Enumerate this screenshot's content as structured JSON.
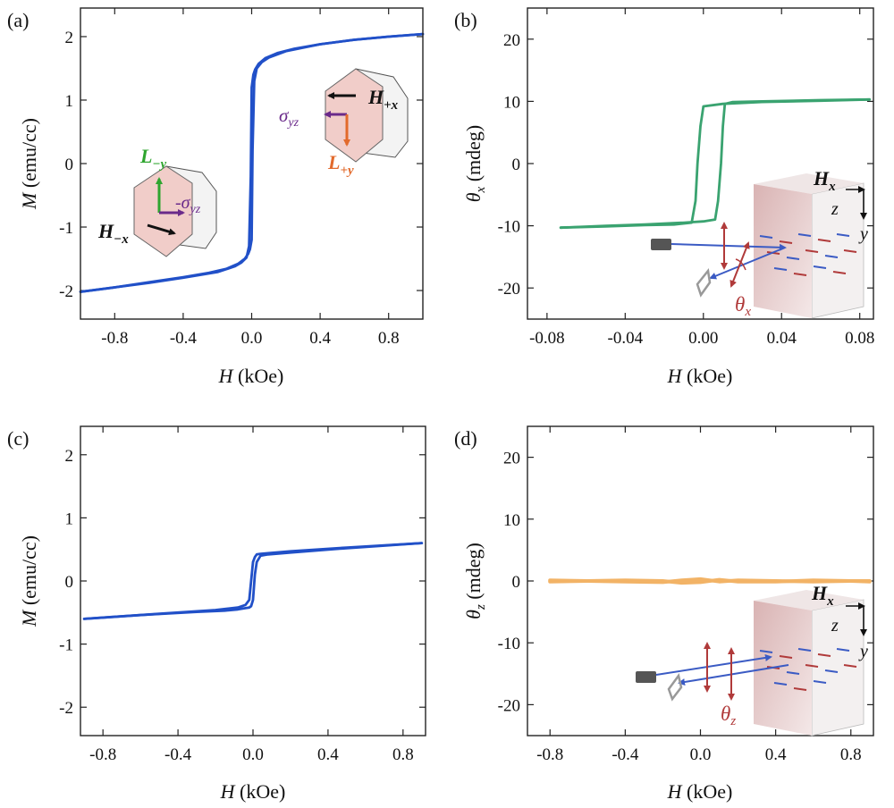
{
  "chart_data": [
    {
      "panel": "(a)",
      "type": "line",
      "xlabel": {
        "var": "H",
        "unit": " (kOe)"
      },
      "ylabel": {
        "var": "M",
        "unit": " (emu/cc)"
      },
      "xlim": [
        -1.0,
        1.0
      ],
      "ylim": [
        -2.45,
        2.45
      ],
      "xticks": [
        -0.8,
        -0.4,
        0.0,
        0.4,
        0.8
      ],
      "yticks": [
        -2,
        -1,
        0,
        1,
        2
      ],
      "xtick_labels": [
        "-0.8",
        "-0.4",
        "0.0",
        "0.4",
        "0.8"
      ],
      "ytick_labels": [
        "-2",
        "-1",
        "0",
        "1",
        "2"
      ],
      "color": "#2150c8",
      "series": [
        {
          "x": [
            -1.0,
            -0.8,
            -0.6,
            -0.4,
            -0.25,
            -0.15,
            -0.08,
            -0.04,
            -0.02,
            -0.01,
            0.0,
            0.005,
            0.015,
            0.03,
            0.06,
            0.1,
            0.2,
            0.4,
            0.6,
            0.8,
            1.0
          ],
          "y": [
            -2.02,
            -1.95,
            -1.87,
            -1.79,
            -1.72,
            -1.66,
            -1.58,
            -1.5,
            -1.42,
            -1.35,
            -1.2,
            0.2,
            1.3,
            1.5,
            1.6,
            1.67,
            1.77,
            1.88,
            1.95,
            2.0,
            2.04
          ]
        },
        {
          "x": [
            1.0,
            0.8,
            0.6,
            0.4,
            0.25,
            0.15,
            0.08,
            0.04,
            0.02,
            0.01,
            0.0,
            -0.005,
            -0.015,
            -0.03,
            -0.06,
            -0.1,
            -0.2,
            -0.4,
            -0.6,
            -0.8,
            -1.0
          ],
          "y": [
            2.04,
            2.0,
            1.95,
            1.88,
            1.81,
            1.74,
            1.66,
            1.57,
            1.48,
            1.4,
            1.2,
            -0.2,
            -1.3,
            -1.48,
            -1.56,
            -1.62,
            -1.71,
            -1.8,
            -1.88,
            -1.95,
            -2.02
          ]
        }
      ],
      "insets": [
        {
          "kind": "hexagon",
          "face_color": "#f1cdc9",
          "labels": [
            "L_{-y}",
            "-σ_{yz}",
            "H_{-x}"
          ]
        },
        {
          "kind": "hexagon",
          "face_color": "#f1cdc9",
          "labels": [
            "H_{+x}",
            "σ_{yz}",
            "L_{+y}"
          ]
        }
      ]
    },
    {
      "panel": "(b)",
      "type": "line",
      "xlabel": {
        "var": "H",
        "unit": " (kOe)"
      },
      "ylabel": {
        "var": "θ",
        "sub": "x",
        "unit": " (mdeg)"
      },
      "xlim": [
        -0.09,
        0.087
      ],
      "ylim": [
        -25,
        25
      ],
      "xticks": [
        -0.08,
        -0.04,
        0.0,
        0.04,
        0.08
      ],
      "yticks": [
        -20,
        -10,
        0,
        10,
        20
      ],
      "xtick_labels": [
        "-0.08",
        "-0.04",
        "0.00",
        "0.04",
        "0.08"
      ],
      "ytick_labels": [
        "-20",
        "-10",
        "0",
        "10",
        "20"
      ],
      "color": "#3aa370",
      "series": [
        {
          "x": [
            -0.073,
            -0.05,
            -0.03,
            -0.015,
            -0.006,
            -0.004,
            -0.003,
            -0.0015,
            0.0,
            0.01,
            0.03,
            0.06,
            0.085
          ],
          "y": [
            -10.3,
            -10.1,
            -9.9,
            -9.8,
            -9.5,
            -6.0,
            0.0,
            6.0,
            9.2,
            9.6,
            9.9,
            10.1,
            10.3
          ]
        },
        {
          "x": [
            0.085,
            0.06,
            0.03,
            0.015,
            0.011,
            0.01,
            0.009,
            0.0075,
            0.006,
            0.0,
            -0.01,
            -0.03,
            -0.05,
            -0.073
          ],
          "y": [
            10.3,
            10.2,
            10.0,
            9.9,
            9.6,
            6.0,
            0.0,
            -6.0,
            -9.0,
            -9.3,
            -9.5,
            -9.8,
            -10.0,
            -10.3
          ]
        }
      ],
      "inset": {
        "kind": "kerr-setup",
        "field": "H_x",
        "axes": [
          "z",
          "y"
        ],
        "angle": "θ_x"
      }
    },
    {
      "panel": "(c)",
      "type": "line",
      "xlabel": {
        "var": "H",
        "unit": " (kOe)"
      },
      "ylabel": {
        "var": "M",
        "unit": " (emu/cc)"
      },
      "xlim": [
        -0.92,
        0.92
      ],
      "ylim": [
        -2.45,
        2.45
      ],
      "xticks": [
        -0.8,
        -0.4,
        0.0,
        0.4,
        0.8
      ],
      "yticks": [
        -2,
        -1,
        0,
        1,
        2
      ],
      "xtick_labels": [
        "-0.8",
        "-0.4",
        "0.0",
        "0.4",
        "0.8"
      ],
      "ytick_labels": [
        "-2",
        "-1",
        "0",
        "1",
        "2"
      ],
      "color": "#2150c8",
      "series": [
        {
          "x": [
            -0.9,
            -0.6,
            -0.3,
            -0.15,
            -0.08,
            -0.04,
            -0.02,
            -0.01,
            0.0,
            0.01,
            0.02,
            0.04,
            0.08,
            0.2,
            0.5,
            0.9
          ],
          "y": [
            -0.6,
            -0.54,
            -0.49,
            -0.47,
            -0.45,
            -0.43,
            -0.42,
            -0.4,
            -0.3,
            0.1,
            0.3,
            0.4,
            0.42,
            0.45,
            0.52,
            0.6
          ]
        },
        {
          "x": [
            0.9,
            0.5,
            0.2,
            0.08,
            0.04,
            0.02,
            0.01,
            0.0,
            -0.01,
            -0.02,
            -0.04,
            -0.08,
            -0.2,
            -0.5,
            -0.9
          ],
          "y": [
            0.6,
            0.53,
            0.47,
            0.44,
            0.43,
            0.42,
            0.38,
            0.3,
            0.0,
            -0.3,
            -0.38,
            -0.42,
            -0.46,
            -0.52,
            -0.6
          ]
        }
      ]
    },
    {
      "panel": "(d)",
      "type": "line",
      "xlabel": {
        "var": "H",
        "unit": " (kOe)"
      },
      "ylabel": {
        "var": "θ",
        "sub": "z",
        "unit": " (mdeg)"
      },
      "xlim": [
        -0.92,
        0.92
      ],
      "ylim": [
        -25,
        25
      ],
      "xticks": [
        -0.8,
        -0.4,
        0.0,
        0.4,
        0.8
      ],
      "yticks": [
        -20,
        -10,
        0,
        10,
        20
      ],
      "xtick_labels": [
        "-0.8",
        "-0.4",
        "0.0",
        "0.4",
        "0.8"
      ],
      "ytick_labels": [
        "-20",
        "-10",
        "0",
        "10",
        "20"
      ],
      "color": "#f2b366",
      "series": [
        {
          "x": [
            -0.8,
            -0.6,
            -0.4,
            -0.2,
            -0.1,
            0.0,
            0.1,
            0.2,
            0.4,
            0.6,
            0.8,
            0.9
          ],
          "y": [
            0.1,
            0.0,
            -0.1,
            -0.2,
            0.1,
            0.3,
            -0.1,
            0.1,
            0.0,
            -0.1,
            0.0,
            0.0
          ]
        },
        {
          "x": [
            0.9,
            0.8,
            0.6,
            0.4,
            0.2,
            0.1,
            0.0,
            -0.1,
            -0.2,
            -0.4,
            -0.6,
            -0.8
          ],
          "y": [
            -0.1,
            0.0,
            0.1,
            -0.1,
            -0.1,
            0.2,
            -0.2,
            -0.3,
            0.0,
            0.1,
            0.0,
            -0.1
          ]
        }
      ],
      "inset": {
        "kind": "kerr-setup",
        "field": "H_x",
        "axes": [
          "z",
          "y"
        ],
        "angle": "θ_z"
      }
    }
  ]
}
